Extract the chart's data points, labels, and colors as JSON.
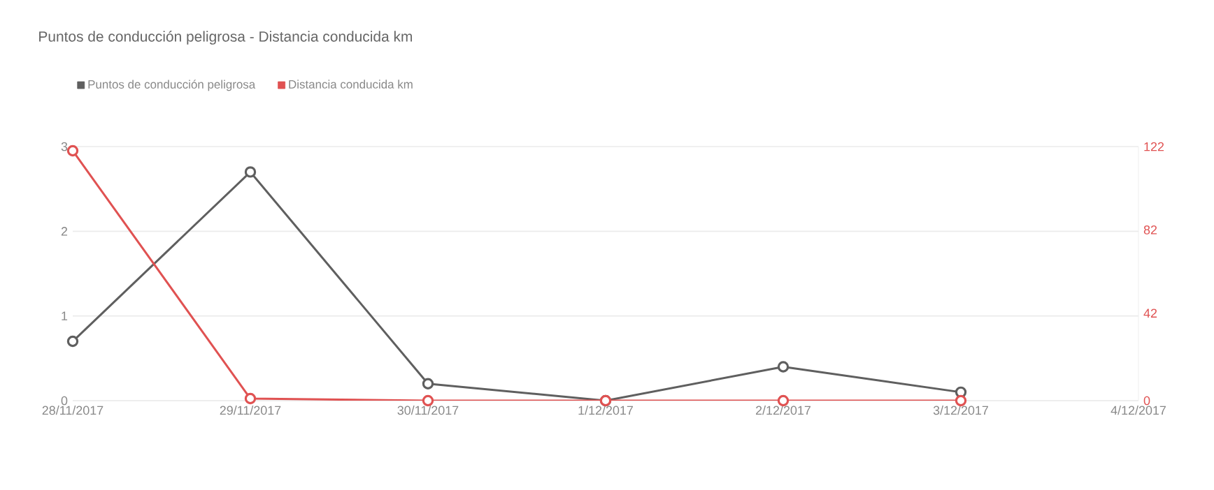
{
  "chart_data": {
    "type": "line",
    "title": "Puntos de conducción peligrosa - Distancia conducida km",
    "x": [
      "2017-11-28",
      "2017-11-29",
      "2017-11-30",
      "2017-12-01",
      "2017-12-02",
      "2017-12-03"
    ],
    "series": [
      {
        "name": "Puntos de conducción peligrosa",
        "color": "#5f5f5f",
        "values": [
          0.7,
          2.7,
          0.2,
          0,
          0.4,
          0.1
        ]
      },
      {
        "name": "Distancia conducida km",
        "color": "#e05252",
        "axis": "y2",
        "values": [
          120,
          1,
          0,
          0,
          0,
          0
        ]
      }
    ],
    "xlim": [
      "2017-11-28",
      "2017-12-04"
    ],
    "xticks": [
      {
        "value": "2017-11-28",
        "label": "28/11/2017"
      },
      {
        "value": "2017-11-29",
        "label": "29/11/2017"
      },
      {
        "value": "2017-11-30",
        "label": "30/11/2017"
      },
      {
        "value": "2017-12-01",
        "label": "1/12/2017"
      },
      {
        "value": "2017-12-02",
        "label": "2/12/2017"
      },
      {
        "value": "2017-12-03",
        "label": "3/12/2017"
      },
      {
        "value": "2017-12-04",
        "label": "4/12/2017"
      }
    ],
    "ylim": [
      0,
      3
    ],
    "yticks": [
      0,
      1,
      2,
      3
    ],
    "y2lim": [
      0,
      122
    ],
    "y2ticks": [
      0,
      42,
      82,
      122
    ],
    "grid": "y",
    "legend": "top left",
    "marker": "circle"
  }
}
